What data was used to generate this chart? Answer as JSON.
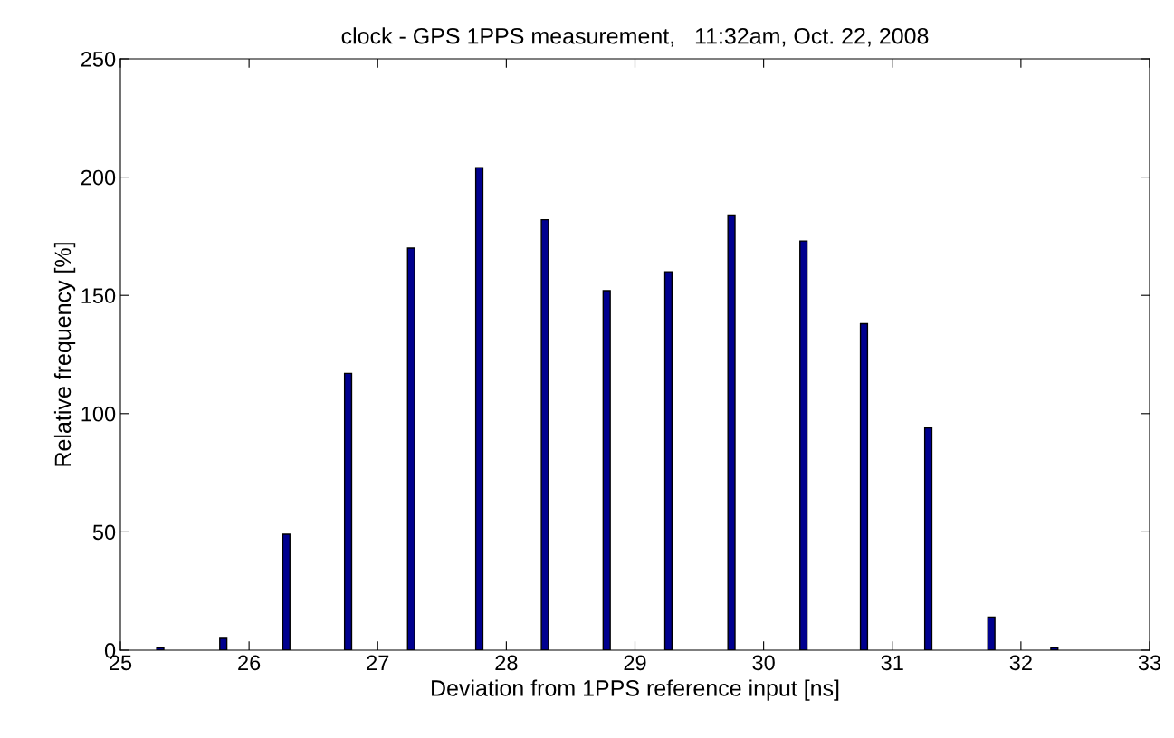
{
  "chart_data": {
    "type": "bar",
    "title": "clock - GPS 1PPS measurement,   11:32am, Oct. 22, 2008",
    "xlabel": "Deviation from 1PPS reference input [ns]",
    "ylabel": "Relative frequency [%]",
    "x": [
      25.31,
      25.8,
      26.29,
      26.77,
      27.26,
      27.79,
      28.3,
      28.78,
      29.26,
      29.75,
      30.31,
      30.78,
      31.28,
      31.77,
      32.26
    ],
    "values": [
      1,
      5,
      49,
      117,
      170,
      204,
      182,
      152,
      160,
      184,
      173,
      138,
      94,
      14,
      1
    ],
    "color": "#00008f",
    "xlim": [
      25,
      33
    ],
    "xticks": [
      25,
      26,
      27,
      28,
      29,
      30,
      31,
      32,
      33
    ],
    "ylim": [
      0,
      250
    ],
    "yticks": [
      0,
      50,
      100,
      150,
      200,
      250
    ],
    "grid": false,
    "legend": false
  }
}
